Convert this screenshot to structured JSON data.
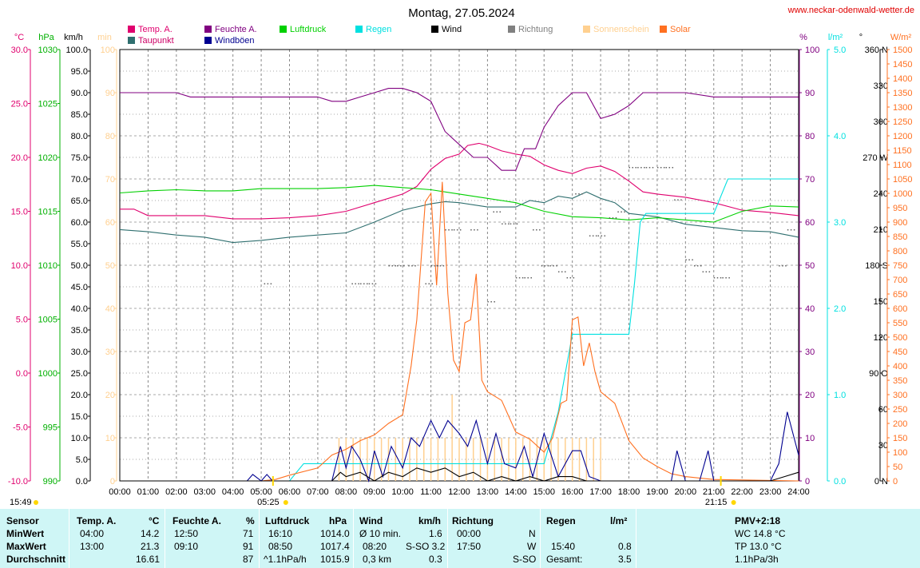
{
  "title": "Montag, 27.05.2024",
  "website": "www.neckar-odenwald-wetter.de",
  "legend": [
    {
      "label": "Temp. A.",
      "color": "#e0006e"
    },
    {
      "label": "Taupunkt",
      "color": "#2f6f6f"
    },
    {
      "label": "Feuchte A.",
      "color": "#800080"
    },
    {
      "label": "Windböen",
      "color": "#000090"
    },
    {
      "label": "Luftdruck",
      "color": "#00d000"
    },
    {
      "label": "Regen",
      "color": "#00e0e0"
    },
    {
      "label": "Wind",
      "color": "#000000"
    },
    {
      "label": "Richtung",
      "color": "#808080"
    },
    {
      "label": "Sonnenschein",
      "color": "#ffd090"
    },
    {
      "label": "Solar",
      "color": "#ff7020"
    }
  ],
  "axes_left": [
    {
      "unit": "°C",
      "color": "#e0006e",
      "ticks": [
        "30.0",
        "25.0",
        "20.0",
        "15.0",
        "10.0",
        "5.0",
        "0.0",
        "-5.0",
        "-10.0"
      ]
    },
    {
      "unit": "hPa",
      "color": "#00b000",
      "ticks": [
        "1030",
        "1025",
        "1020",
        "1015",
        "1010",
        "1005",
        "1000",
        "995",
        "990"
      ]
    },
    {
      "unit": "km/h",
      "color": "#000000",
      "ticks": [
        "100.0",
        "95.0",
        "90.0",
        "85.0",
        "80.0",
        "75.0",
        "70.0",
        "65.0",
        "60.0",
        "55.0",
        "50.0",
        "45.0",
        "40.0",
        "35.0",
        "30.0",
        "25.0",
        "20.0",
        "15.0",
        "10.0",
        "5.0",
        "0.0"
      ]
    },
    {
      "unit": "min",
      "color": "#ffd090",
      "ticks": [
        "100",
        "90",
        "80",
        "70",
        "60",
        "50",
        "40",
        "30",
        "20",
        "10",
        "0"
      ]
    }
  ],
  "axes_right": [
    {
      "unit": "%",
      "color": "#800080",
      "ticks": [
        "100",
        "90",
        "80",
        "70",
        "60",
        "50",
        "40",
        "30",
        "20",
        "10",
        "0"
      ]
    },
    {
      "unit": "l/m²",
      "color": "#00e0e0",
      "ticks": [
        "5.0",
        "4.0",
        "3.0",
        "2.0",
        "1.0",
        "0.0"
      ]
    },
    {
      "unit": "°",
      "color": "#000000",
      "ticks": [
        "360 N",
        "330",
        "300",
        "270 W",
        "240",
        "210",
        "180 S",
        "150",
        "120",
        "90 O",
        "60",
        "30",
        "0 N"
      ]
    },
    {
      "unit": "W/m²",
      "color": "#ff7020",
      "ticks": [
        "1500",
        "1450",
        "1400",
        "1350",
        "1300",
        "1250",
        "1200",
        "1150",
        "1100",
        "1050",
        "1000",
        "950",
        "900",
        "850",
        "800",
        "750",
        "700",
        "650",
        "600",
        "550",
        "500",
        "450",
        "400",
        "350",
        "300",
        "250",
        "200",
        "150",
        "100",
        "50",
        "0"
      ]
    }
  ],
  "time_labels": [
    "00:00",
    "01:00",
    "02:00",
    "03:00",
    "04:00",
    "05:00",
    "06:00",
    "07:00",
    "08:00",
    "09:00",
    "10:00",
    "11:00",
    "12:00",
    "13:00",
    "14:00",
    "15:00",
    "16:00",
    "17:00",
    "18:00",
    "19:00",
    "20:00",
    "21:00",
    "22:00",
    "23:00",
    "24:00"
  ],
  "sunrise": "05:25",
  "sunset": "21:15",
  "day_length": "15:49",
  "chart_data": {
    "type": "line",
    "title": "Montag, 27.05.2024",
    "x_unit": "hours",
    "xlim": [
      0,
      24
    ],
    "series": [
      {
        "name": "Temp. A.",
        "unit": "°C",
        "color": "#e0006e",
        "x": [
          0,
          0.5,
          1,
          2,
          3,
          4,
          5,
          6,
          7,
          8,
          9,
          10,
          10.5,
          11,
          11.5,
          12,
          12.3,
          12.7,
          13,
          13.5,
          14,
          14.5,
          15,
          15.5,
          16,
          16.5,
          17,
          17.5,
          18,
          18.5,
          19,
          20,
          21,
          22,
          23,
          24
        ],
        "values": [
          15.2,
          15.2,
          14.6,
          14.6,
          14.6,
          14.3,
          14.3,
          14.4,
          14.6,
          15.0,
          15.8,
          16.6,
          17.3,
          18.9,
          19.9,
          20.3,
          21.1,
          21.3,
          21.1,
          20.6,
          20.3,
          20.1,
          19.3,
          18.8,
          18.5,
          19.0,
          19.2,
          18.7,
          17.8,
          16.8,
          16.6,
          16.3,
          15.8,
          15.1,
          14.9,
          14.6
        ]
      },
      {
        "name": "Taupunkt",
        "unit": "°C",
        "color": "#2f6f6f",
        "x": [
          0,
          1,
          2,
          3,
          4,
          5,
          6,
          7,
          8,
          9,
          10,
          10.5,
          11,
          11.5,
          12,
          13,
          14,
          14.5,
          15,
          15.5,
          16,
          16.5,
          17,
          17.5,
          18,
          19,
          20,
          21,
          22,
          23,
          24
        ],
        "values": [
          13.3,
          13.1,
          12.8,
          12.6,
          12.1,
          12.3,
          12.6,
          12.8,
          13.0,
          14.0,
          15.1,
          15.4,
          15.7,
          15.9,
          15.8,
          15.4,
          15.4,
          16.0,
          15.8,
          16.4,
          16.2,
          16.8,
          16.2,
          15.8,
          14.8,
          14.5,
          13.8,
          13.5,
          13.2,
          13.1,
          12.6
        ]
      },
      {
        "name": "Feuchte A.",
        "unit": "%",
        "color": "#800080",
        "x": [
          0,
          1,
          2,
          2.5,
          3,
          4,
          5,
          6,
          7,
          7.5,
          8,
          8.5,
          9,
          9.5,
          10,
          10.5,
          11,
          11.5,
          12,
          12.5,
          13,
          13.5,
          14,
          14.3,
          14.7,
          15,
          15.5,
          16,
          16.5,
          17,
          17.5,
          18,
          18.5,
          19,
          20,
          21,
          22,
          23,
          24
        ],
        "values": [
          90,
          90,
          90,
          89,
          89,
          89,
          89,
          89,
          89,
          88,
          88,
          89,
          90,
          91,
          91,
          90,
          88,
          81,
          78,
          75,
          75,
          72,
          72,
          77,
          77,
          82,
          87,
          90,
          90,
          84,
          85,
          87,
          90,
          90,
          90,
          89,
          89,
          89,
          89
        ]
      },
      {
        "name": "Luftdruck",
        "unit": "hPa",
        "color": "#00d000",
        "x": [
          0,
          1,
          2,
          3,
          4,
          5,
          6,
          7,
          8,
          9,
          10,
          11,
          12,
          13,
          14,
          15,
          16,
          17,
          18,
          19,
          20,
          21,
          22,
          23,
          24
        ],
        "values": [
          1016.7,
          1016.9,
          1017.0,
          1016.9,
          1016.9,
          1017.1,
          1017.1,
          1017.1,
          1017.2,
          1017.4,
          1017.2,
          1017.0,
          1016.6,
          1016.2,
          1015.8,
          1015.0,
          1014.5,
          1014.4,
          1014.2,
          1014.4,
          1014.2,
          1014.0,
          1015.0,
          1015.5,
          1015.4
        ]
      },
      {
        "name": "Regen",
        "unit": "l/m²",
        "color": "#00e0e0",
        "x": [
          0,
          6,
          6.5,
          15,
          15.5,
          16,
          17,
          18,
          18.2,
          18.4,
          18.6,
          19,
          20,
          21,
          21.5,
          22,
          24
        ],
        "values": [
          0,
          0,
          0.2,
          0.2,
          0.8,
          1.7,
          1.7,
          1.7,
          2.3,
          3.0,
          3.1,
          3.1,
          3.1,
          3.1,
          3.5,
          3.5,
          3.5
        ]
      },
      {
        "name": "Solar",
        "unit": "W/m²",
        "color": "#ff7020",
        "x": [
          0,
          5,
          5.5,
          6,
          7,
          7.5,
          8,
          8.5,
          9,
          9.5,
          10,
          10.3,
          10.5,
          10.8,
          11,
          11.2,
          11.4,
          11.6,
          11.8,
          12,
          12.2,
          12.4,
          12.6,
          12.8,
          13,
          13.5,
          14,
          14.5,
          15,
          15.3,
          15.6,
          15.8,
          16,
          16.2,
          16.4,
          16.6,
          16.8,
          17,
          17.5,
          18,
          18.5,
          19,
          19.5,
          20,
          20.5,
          21,
          24
        ],
        "values": [
          0,
          0,
          5,
          20,
          45,
          90,
          110,
          140,
          160,
          200,
          230,
          400,
          560,
          970,
          1000,
          680,
          1040,
          650,
          420,
          380,
          550,
          560,
          720,
          350,
          310,
          280,
          170,
          145,
          100,
          150,
          270,
          280,
          560,
          570,
          400,
          480,
          380,
          310,
          270,
          140,
          80,
          50,
          25,
          15,
          10,
          5,
          0
        ]
      },
      {
        "name": "Windböen",
        "unit": "km/h",
        "color": "#000090",
        "x": [
          0,
          4.5,
          4.7,
          5,
          5.2,
          5.4,
          6,
          7.5,
          7.8,
          8,
          8.2,
          8.5,
          8.8,
          9,
          9.3,
          9.6,
          10,
          10.3,
          10.6,
          11,
          11.3,
          11.6,
          12,
          12.3,
          12.6,
          13,
          13.3,
          13.6,
          14,
          14.3,
          14.6,
          15,
          15.5,
          16,
          16.3,
          16.6,
          17,
          17.5,
          18,
          19,
          19.5,
          19.7,
          20,
          20.5,
          20.8,
          21,
          22.5,
          23,
          23.3,
          23.6,
          24
        ],
        "values": [
          0,
          0,
          1.5,
          0,
          1.5,
          0,
          0,
          0,
          8,
          3,
          8,
          5,
          0,
          7,
          1,
          8,
          3,
          10,
          8,
          14,
          10,
          14,
          11,
          8,
          14,
          4,
          11,
          4,
          3,
          8,
          1,
          11,
          1,
          7,
          7,
          1,
          0,
          0,
          0,
          0,
          0,
          7,
          0,
          0,
          7,
          0,
          0,
          0,
          4,
          16,
          6
        ]
      },
      {
        "name": "Wind",
        "unit": "km/h",
        "color": "#000000",
        "x": [
          0,
          7.5,
          7.8,
          8,
          8.5,
          9,
          9.5,
          10,
          10.5,
          11,
          11.5,
          12,
          12.5,
          13,
          13.5,
          14,
          14.5,
          15,
          15.5,
          16,
          16.5,
          17,
          23,
          23.5,
          24
        ],
        "values": [
          0,
          0,
          2,
          1,
          2,
          0,
          2,
          1,
          3,
          2,
          3,
          1,
          2,
          0,
          1,
          0,
          1,
          0,
          1,
          1,
          0,
          0,
          0,
          1,
          2
        ]
      },
      {
        "name": "Sonnenschein",
        "unit": "min",
        "color": "#ffd090",
        "x": [
          7.75,
          8,
          8.25,
          8.5,
          8.75,
          9,
          9.25,
          9.5,
          9.75,
          10,
          10.25,
          10.5,
          10.75,
          11,
          11.25,
          11.5,
          11.75,
          12,
          12.25,
          12.5,
          12.75,
          13,
          13.25,
          13.5,
          13.75,
          14,
          14.25,
          14.5,
          14.75,
          15,
          15.25,
          15.5,
          15.75,
          16,
          16.25,
          16.5,
          16.75,
          17
        ],
        "values": [
          10,
          10,
          10,
          10,
          10,
          10,
          10,
          10,
          10,
          10,
          10,
          10,
          10,
          10,
          10,
          10,
          20,
          10,
          10,
          10,
          10,
          10,
          10,
          10,
          10,
          10,
          10,
          10,
          10,
          10,
          10,
          10,
          10,
          10,
          10,
          10,
          10,
          10
        ]
      }
    ],
    "direction_points": {
      "name": "Richtung",
      "unit": "°",
      "x": [
        5.1,
        8.2,
        8.5,
        8.8,
        9.5,
        9.8,
        10.2,
        10.8,
        11.0,
        11.2,
        11.5,
        11.8,
        12.4,
        13.0,
        13.2,
        13.5,
        13.8,
        14.0,
        14.3,
        14.6,
        14.9,
        15.2,
        15.5,
        15.8,
        16.1,
        16.6,
        16.9,
        17.3,
        17.6,
        18.0,
        18.3,
        18.6,
        19.0,
        19.3,
        19.6,
        20.0,
        20.3,
        20.6,
        21.0,
        21.3,
        23.3,
        23.6
      ],
      "values": [
        165,
        165,
        165,
        165,
        180,
        180,
        180,
        165,
        180,
        180,
        210,
        210,
        210,
        150,
        225,
        215,
        215,
        170,
        170,
        210,
        180,
        180,
        175,
        170,
        240,
        205,
        205,
        220,
        225,
        262,
        262,
        262,
        262,
        262,
        235,
        185,
        180,
        175,
        170,
        170,
        180,
        210
      ]
    }
  },
  "table": {
    "rows_label": [
      "Sensor",
      "MinWert",
      "MaxWert",
      "Durchschnitt"
    ],
    "temp": {
      "header": "Temp. A.",
      "unit": "°C",
      "min_time": "04:00",
      "min": "14.2",
      "max_time": "13:00",
      "max": "21.3",
      "avg": "16.61"
    },
    "feuchte": {
      "header": "Feuchte A.",
      "unit": "%",
      "min_time": "12:50",
      "min": "71",
      "max_time": "09:10",
      "max": "91",
      "avg": "87"
    },
    "luftdruck": {
      "header": "Luftdruck",
      "unit": "hPa",
      "min_time": "16:10",
      "min": "1014.0",
      "max_time": "08:50",
      "max": "1017.4",
      "trend": "^1.1hPa/h",
      "avg": "1015.9"
    },
    "wind": {
      "header": "Wind",
      "unit": "km/h",
      "min_label": "Ø 10 min.",
      "min": "1.6",
      "max_time": "08:20",
      "max": "S-SO 3.2",
      "avg_label": "0,3 km",
      "avg": "0.3"
    },
    "richtung": {
      "header": "Richtung",
      "min_time": "00:00",
      "min": "N",
      "max_time": "17:50",
      "max": "W",
      "avg": "S-SO"
    },
    "regen": {
      "header": "Regen",
      "unit": "l/m²",
      "max_time": "15:40",
      "max": "0.8",
      "total_label": "Gesamt:",
      "total": "3.5"
    },
    "pmv": {
      "header": "PMV+2:18",
      "wc": "WC 14.8 °C",
      "tp": "TP 13.0 °C",
      "trend": "1.1hPa/3h"
    }
  }
}
